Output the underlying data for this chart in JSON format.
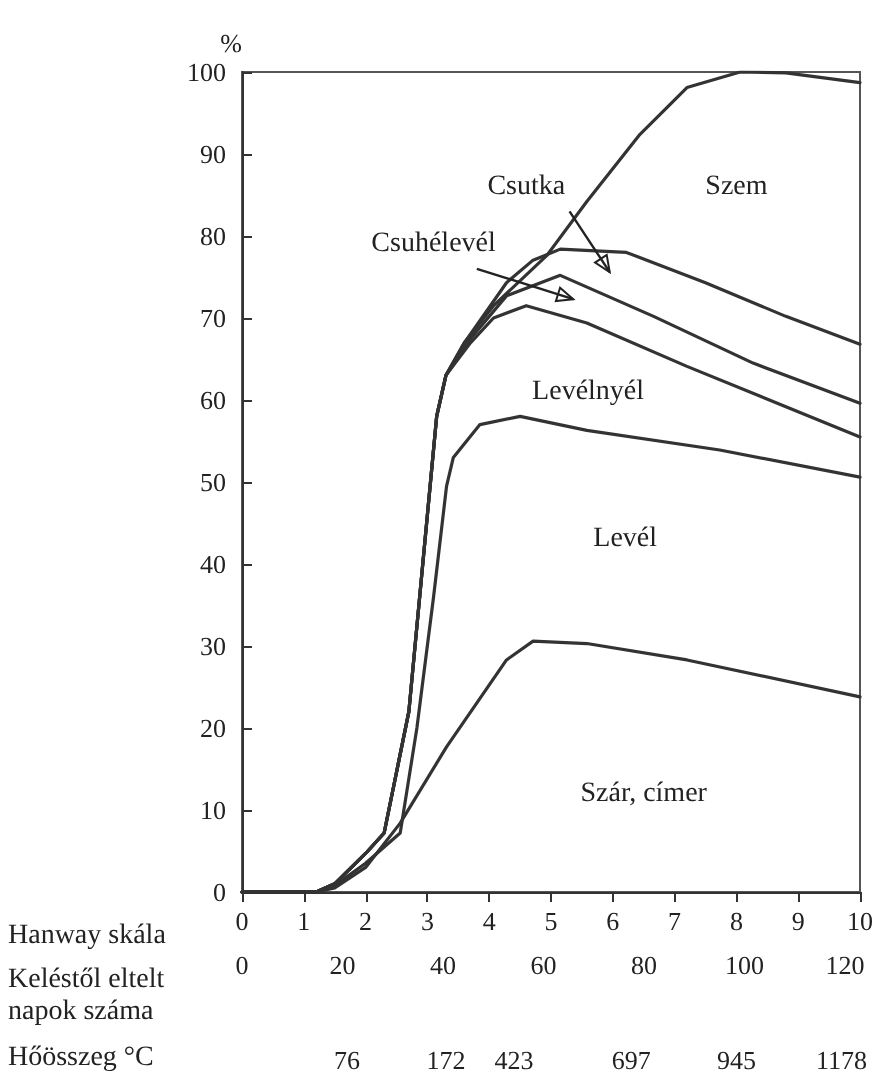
{
  "chart_data": {
    "type": "line",
    "ylabel": "%",
    "xlabel": "Hanway skála",
    "x2label": "Keléstől eltelt napok száma",
    "xlim": [
      0,
      10
    ],
    "xticks": [
      0,
      1,
      2,
      3,
      4,
      5,
      6,
      7,
      8,
      9,
      10
    ],
    "ylim": [
      0,
      100
    ],
    "yticks": [
      0,
      10,
      20,
      30,
      40,
      50,
      60,
      70,
      80,
      90,
      100
    ],
    "x2lim": [
      0,
      123
    ],
    "x2ticks": [
      0,
      20,
      40,
      60,
      80,
      100,
      120
    ],
    "grid": false,
    "marker": "none",
    "line_style": "solid",
    "series": [
      {
        "color": "#333333",
        "x": [
          0,
          1.2,
          1.5,
          2,
          2.3,
          2.7,
          2.9,
          3.05,
          3.15,
          3.3,
          3.6,
          4.07,
          4.93,
          5.58,
          6.44,
          7.2,
          8.06,
          8.8,
          10
        ],
        "values": [
          0,
          0,
          1,
          4.7,
          7.2,
          22,
          38,
          50,
          58,
          63,
          67,
          71.5,
          77.6,
          84.2,
          92.4,
          98.1,
          100,
          99.9,
          98.7
        ]
      },
      {
        "color": "#333333",
        "x": [
          0,
          1.2,
          1.5,
          2,
          2.3,
          2.7,
          2.9,
          3.05,
          3.15,
          3.3,
          3.6,
          4.28,
          4.7,
          5.15,
          6.22,
          7.5,
          8.8,
          10
        ],
        "values": [
          0,
          0,
          1,
          4.7,
          7.2,
          22,
          38,
          50,
          58,
          63,
          67,
          74.3,
          77,
          78.4,
          78,
          74.3,
          70.2,
          66.8
        ]
      },
      {
        "color": "#333333",
        "x": [
          0,
          1.2,
          1.5,
          2,
          2.3,
          2.7,
          2.9,
          3.05,
          3.15,
          3.3,
          3.7,
          4.28,
          5.15,
          6.66,
          8.27,
          10
        ],
        "values": [
          0,
          0,
          1,
          4.7,
          7.2,
          22,
          38,
          50,
          58,
          63,
          67.5,
          72.7,
          75.2,
          70.2,
          64.5,
          59.6
        ]
      },
      {
        "color": "#333333",
        "x": [
          0,
          1.2,
          1.5,
          2,
          2.3,
          2.7,
          2.9,
          3.05,
          3.15,
          3.3,
          3.7,
          4.07,
          4.6,
          5.58,
          7.2,
          10
        ],
        "values": [
          0,
          0,
          1,
          4.7,
          7.2,
          22,
          38,
          50,
          58,
          63,
          67,
          70,
          71.5,
          69.4,
          64.1,
          55.5
        ]
      },
      {
        "color": "#333333",
        "x": [
          0,
          1.2,
          1.5,
          2,
          2.56,
          2.83,
          3.1,
          3.31,
          3.42,
          3.85,
          4.5,
          5.58,
          7.73,
          10
        ],
        "values": [
          0,
          0,
          0.8,
          3.5,
          7.2,
          20,
          36,
          49.5,
          53,
          57,
          58,
          56.3,
          53.9,
          50.6
        ]
      },
      {
        "color": "#333333",
        "x": [
          0,
          1.2,
          1.5,
          2,
          2.56,
          3.31,
          4.28,
          4.71,
          5.58,
          7.2,
          10
        ],
        "values": [
          0,
          0,
          0.5,
          3,
          8.4,
          17.7,
          28.3,
          30.6,
          30.3,
          28.3,
          23.8
        ]
      }
    ],
    "annotations": [
      "Szem",
      "Csutka",
      "Csuhélevél",
      "Levélnyél",
      "Levél",
      "Szár, címer",
      "Hőösszeg °C",
      "76",
      "172",
      "423",
      "697",
      "945",
      "1178"
    ]
  }
}
